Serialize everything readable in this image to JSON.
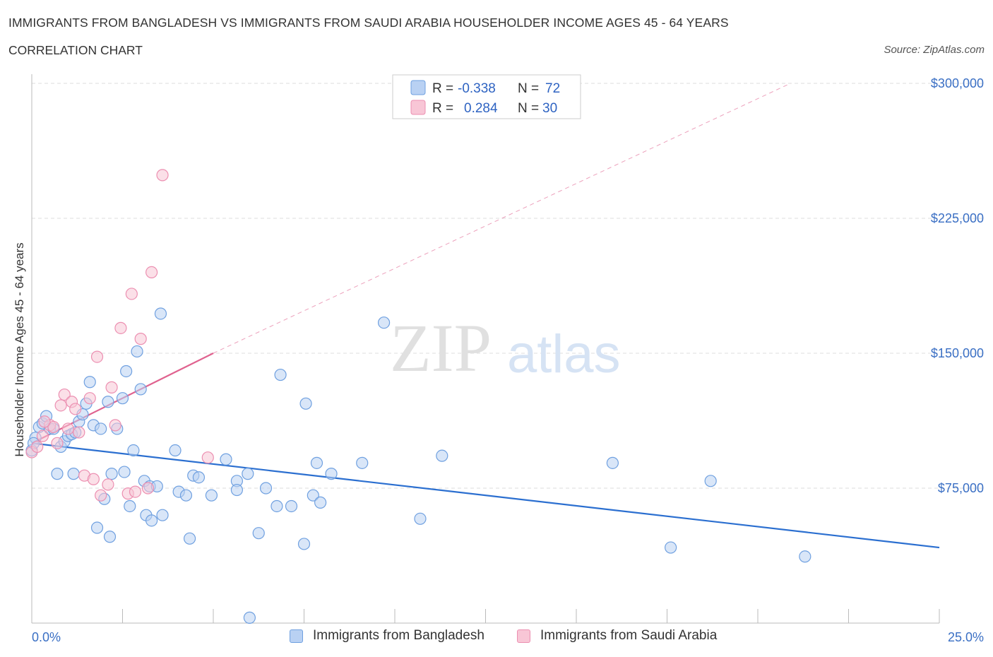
{
  "header": {
    "title": "IMMIGRANTS FROM BANGLADESH VS IMMIGRANTS FROM SAUDI ARABIA HOUSEHOLDER INCOME AGES 45 - 64 YEARS",
    "subtitle": "CORRELATION CHART",
    "source": "Source: ZipAtlas.com"
  },
  "watermark": {
    "zip": "ZIP",
    "atlas": "atlas"
  },
  "colors": {
    "blue": "#6fa0e0",
    "blue_fill": "#b9d1f3",
    "blue_line": "#2b6fd0",
    "pink": "#ec8fb1",
    "pink_fill": "#f8c6d6",
    "pink_line": "#e0628f",
    "grid": "#dddddd",
    "tick_text": "#3a6fc4"
  },
  "legend_top": {
    "rows": [
      {
        "r_label": "R =",
        "r_value": "-0.338",
        "n_label": "N =",
        "n_value": "72",
        "series": "blue"
      },
      {
        "r_label": "R =",
        "r_value": "0.284",
        "n_label": "N =",
        "n_value": "30",
        "series": "pink"
      }
    ]
  },
  "legend_bottom": [
    {
      "label": "Immigrants from Bangladesh",
      "series": "blue"
    },
    {
      "label": "Immigrants from Saudi Arabia",
      "series": "pink"
    }
  ],
  "chart_data": {
    "type": "scatter",
    "title": "IMMIGRANTS FROM BANGLADESH VS IMMIGRANTS FROM SAUDI ARABIA HOUSEHOLDER INCOME AGES 45 - 64 YEARS",
    "xlabel": "",
    "ylabel": "Householder Income Ages 45 - 64 years",
    "xlim": [
      0,
      25
    ],
    "ylim": [
      0,
      300000
    ],
    "x_tick_labels": [
      "0.0%",
      "25.0%"
    ],
    "y_ticks": [
      75000,
      150000,
      225000,
      300000
    ],
    "y_tick_labels": [
      "$75,000",
      "$150,000",
      "$225,000",
      "$300,000"
    ],
    "grid": true,
    "series": [
      {
        "name": "Immigrants from Bangladesh",
        "color": "blue",
        "R": -0.338,
        "N": 72,
        "trend": {
          "x": [
            0,
            25
          ],
          "y": [
            100000,
            42000
          ],
          "dashed_extension": false
        },
        "points": [
          [
            0.0,
            96000
          ],
          [
            0.1,
            103000
          ],
          [
            0.2,
            109000
          ],
          [
            0.3,
            111000
          ],
          [
            0.4,
            115000
          ],
          [
            0.5,
            108000
          ],
          [
            0.6,
            108000
          ],
          [
            0.7,
            83000
          ],
          [
            0.8,
            98000
          ],
          [
            0.9,
            101000
          ],
          [
            1.0,
            104000
          ],
          [
            1.1,
            105000
          ],
          [
            1.2,
            106000
          ],
          [
            1.15,
            83000
          ],
          [
            1.3,
            112000
          ],
          [
            1.4,
            116000
          ],
          [
            1.5,
            122000
          ],
          [
            1.6,
            134000
          ],
          [
            1.7,
            110000
          ],
          [
            1.8,
            53000
          ],
          [
            1.9,
            108000
          ],
          [
            2.0,
            69000
          ],
          [
            2.1,
            123000
          ],
          [
            2.15,
            48000
          ],
          [
            2.2,
            83000
          ],
          [
            2.35,
            108000
          ],
          [
            2.5,
            125000
          ],
          [
            2.55,
            84000
          ],
          [
            2.6,
            140000
          ],
          [
            2.7,
            65000
          ],
          [
            2.8,
            96000
          ],
          [
            2.9,
            151000
          ],
          [
            3.0,
            130000
          ],
          [
            3.1,
            79000
          ],
          [
            3.15,
            60000
          ],
          [
            3.25,
            76000
          ],
          [
            3.3,
            57000
          ],
          [
            3.45,
            76000
          ],
          [
            3.55,
            172000
          ],
          [
            3.6,
            60000
          ],
          [
            3.95,
            96000
          ],
          [
            4.05,
            73000
          ],
          [
            4.25,
            71000
          ],
          [
            4.35,
            47000
          ],
          [
            4.45,
            82000
          ],
          [
            4.6,
            81000
          ],
          [
            4.95,
            71000
          ],
          [
            5.35,
            91000
          ],
          [
            5.65,
            79000
          ],
          [
            5.65,
            74000
          ],
          [
            5.95,
            83000
          ],
          [
            6.0,
            3000
          ],
          [
            6.25,
            50000
          ],
          [
            6.45,
            75000
          ],
          [
            6.75,
            65000
          ],
          [
            6.85,
            138000
          ],
          [
            7.15,
            65000
          ],
          [
            7.5,
            44000
          ],
          [
            7.55,
            122000
          ],
          [
            7.75,
            71000
          ],
          [
            7.85,
            89000
          ],
          [
            7.95,
            67000
          ],
          [
            8.25,
            83000
          ],
          [
            9.1,
            89000
          ],
          [
            9.7,
            167000
          ],
          [
            10.7,
            58000
          ],
          [
            11.3,
            93000
          ],
          [
            16.0,
            89000
          ],
          [
            17.6,
            42000
          ],
          [
            18.7,
            79000
          ],
          [
            21.3,
            37000
          ],
          [
            0.05,
            100000
          ]
        ]
      },
      {
        "name": "Immigrants from Saudi Arabia",
        "color": "pink",
        "R": 0.284,
        "N": 30,
        "trend": {
          "x": [
            0,
            5.0
          ],
          "y": [
            100000,
            150000
          ],
          "dashed_extension": {
            "x": [
              5.0,
              20.9
            ],
            "y": [
              150000,
              300000
            ]
          }
        },
        "points": [
          [
            0.0,
            95000
          ],
          [
            0.3,
            104000
          ],
          [
            0.5,
            110000
          ],
          [
            0.6,
            109000
          ],
          [
            0.7,
            100000
          ],
          [
            0.8,
            121000
          ],
          [
            0.9,
            127000
          ],
          [
            1.1,
            123000
          ],
          [
            1.2,
            119000
          ],
          [
            1.3,
            106000
          ],
          [
            1.45,
            82000
          ],
          [
            1.6,
            125000
          ],
          [
            1.7,
            80000
          ],
          [
            1.8,
            148000
          ],
          [
            1.9,
            71000
          ],
          [
            2.1,
            77000
          ],
          [
            2.2,
            131000
          ],
          [
            2.3,
            110000
          ],
          [
            2.45,
            164000
          ],
          [
            2.65,
            72000
          ],
          [
            2.75,
            183000
          ],
          [
            2.85,
            73000
          ],
          [
            3.0,
            158000
          ],
          [
            3.2,
            75000
          ],
          [
            3.3,
            195000
          ],
          [
            3.6,
            249000
          ],
          [
            4.85,
            92000
          ],
          [
            0.35,
            112000
          ],
          [
            1.0,
            108000
          ],
          [
            0.15,
            98000
          ]
        ]
      }
    ]
  }
}
